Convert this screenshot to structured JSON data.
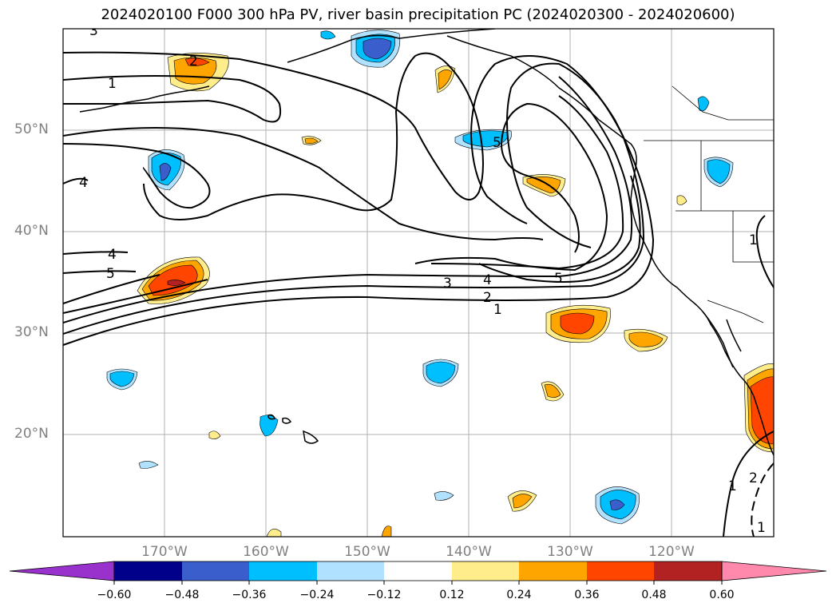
{
  "title": "2024020100 F000 300 hPa PV, river basin precipitation PC (2024020300 - 2024020600)",
  "lat_labels": [
    "50°N",
    "40°N",
    "30°N",
    "20°N"
  ],
  "lon_labels": [
    "170°W",
    "160°W",
    "150°W",
    "140°W",
    "130°W",
    "120°W"
  ],
  "contour_labels": {
    "c1a": "1",
    "c2a": "2",
    "c3a": "3",
    "c4a": "4",
    "c5a": "5",
    "c1b": "1",
    "c2b": "2",
    "c3b": "3",
    "c4b": "4",
    "c5b": "5",
    "c4c": "4",
    "c5c": "5",
    "c1c": "1",
    "c2c": "2",
    "c1d": "1",
    "c1e": "1"
  },
  "colorbar": {
    "colors": [
      "#9932CC",
      "#00008B",
      "#3A5FCD",
      "#00BFFF",
      "#B0E2FF",
      "#FFFFFF",
      "#FFEC8B",
      "#FFA500",
      "#FF4500",
      "#B22222",
      "#FF89AC"
    ],
    "ticks": [
      "−0.60",
      "−0.48",
      "−0.36",
      "−0.24",
      "−0.12",
      "0.12",
      "0.24",
      "0.36",
      "0.48",
      "0.60"
    ]
  }
}
